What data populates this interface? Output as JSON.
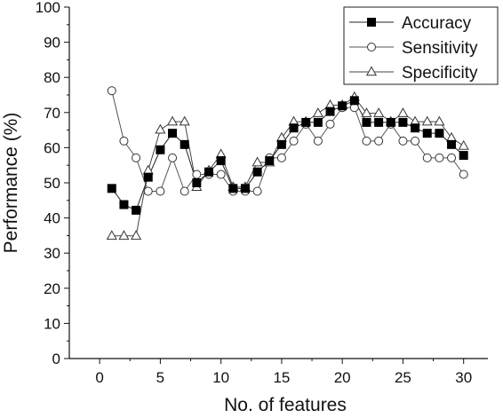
{
  "chart_data": {
    "type": "line",
    "title": "",
    "xlabel": "No. of features",
    "ylabel": "Performance (%)",
    "xlim": [
      -2.5,
      32
    ],
    "ylim": [
      0,
      100
    ],
    "xticks": [
      0,
      5,
      10,
      15,
      20,
      25,
      30
    ],
    "yticks": [
      0,
      10,
      20,
      30,
      40,
      50,
      60,
      70,
      80,
      90,
      100
    ],
    "grid": false,
    "legend_position": "top-right",
    "x": [
      1,
      2,
      3,
      4,
      5,
      6,
      7,
      8,
      9,
      10,
      11,
      12,
      13,
      14,
      15,
      16,
      17,
      18,
      19,
      20,
      21,
      22,
      23,
      24,
      25,
      26,
      27,
      28,
      29,
      30
    ],
    "series": [
      {
        "name": "Accuracy",
        "marker": "filled-square",
        "values": [
          48.4,
          43.8,
          42.2,
          51.6,
          59.4,
          64.1,
          60.9,
          50.0,
          53.1,
          56.3,
          48.4,
          48.4,
          53.1,
          56.3,
          60.9,
          65.6,
          67.2,
          67.2,
          70.3,
          71.9,
          73.4,
          67.2,
          67.2,
          67.2,
          67.2,
          65.6,
          64.1,
          64.1,
          60.9,
          57.8
        ]
      },
      {
        "name": "Sensitivity",
        "marker": "open-circle",
        "values": [
          76.2,
          61.9,
          57.1,
          47.6,
          47.6,
          57.1,
          47.6,
          52.4,
          52.4,
          52.4,
          47.6,
          47.6,
          47.6,
          57.1,
          57.1,
          61.9,
          66.7,
          61.9,
          66.7,
          71.4,
          71.4,
          61.9,
          61.9,
          66.7,
          61.9,
          61.9,
          57.1,
          57.1,
          57.1,
          52.4
        ]
      },
      {
        "name": "Specificity",
        "marker": "open-triangle",
        "values": [
          34.9,
          34.9,
          34.9,
          53.5,
          65.1,
          67.4,
          67.4,
          48.8,
          53.5,
          58.1,
          48.8,
          48.8,
          55.8,
          55.8,
          62.8,
          67.4,
          67.4,
          69.8,
          72.1,
          72.1,
          74.4,
          69.8,
          69.8,
          67.4,
          69.8,
          67.4,
          67.4,
          67.4,
          62.8,
          60.5
        ]
      }
    ]
  }
}
